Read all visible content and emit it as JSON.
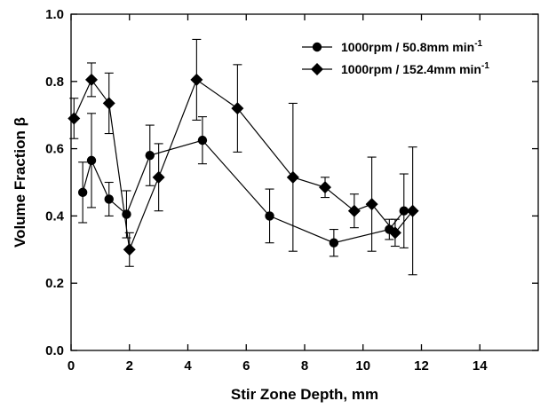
{
  "chart_data": {
    "type": "scatter",
    "xlabel": "Stir Zone Depth, mm",
    "ylabel": "Volume Fraction β",
    "xlim": [
      0,
      16
    ],
    "ylim": [
      0.0,
      1.0
    ],
    "x_ticks": [
      0,
      2,
      4,
      6,
      8,
      10,
      12,
      14
    ],
    "y_ticks": [
      0.0,
      0.2,
      0.4,
      0.6,
      0.8,
      1.0
    ],
    "x_tick_labels": [
      "0",
      "2",
      "4",
      "6",
      "8",
      "10",
      "12",
      "14"
    ],
    "y_tick_labels": [
      "0.0",
      "0.2",
      "0.4",
      "0.6",
      "0.8",
      "1.0"
    ],
    "legend_position": "top-right",
    "series": [
      {
        "name": "1000rpm / 50.8mm min",
        "name_superscript": "-1",
        "marker": "circle",
        "color": "#000000",
        "x": [
          0.4,
          0.7,
          1.3,
          1.9,
          2.7,
          4.5,
          6.8,
          9.0,
          10.9,
          11.4
        ],
        "y": [
          0.47,
          0.565,
          0.45,
          0.405,
          0.58,
          0.625,
          0.4,
          0.32,
          0.36,
          0.415
        ],
        "err": [
          0.09,
          0.14,
          0.05,
          0.07,
          0.09,
          0.07,
          0.08,
          0.04,
          0.03,
          0.11
        ]
      },
      {
        "name": "1000rpm / 152.4mm min",
        "name_superscript": "-1",
        "marker": "diamond",
        "color": "#000000",
        "x": [
          0.1,
          0.7,
          1.3,
          2.0,
          3.0,
          4.3,
          5.7,
          7.6,
          8.7,
          9.7,
          10.3,
          11.1,
          11.7
        ],
        "y": [
          0.69,
          0.805,
          0.735,
          0.3,
          0.515,
          0.805,
          0.72,
          0.515,
          0.485,
          0.415,
          0.435,
          0.35,
          0.415
        ],
        "err": [
          0.06,
          0.05,
          0.09,
          0.05,
          0.1,
          0.12,
          0.13,
          0.22,
          0.03,
          0.05,
          0.14,
          0.04,
          0.19
        ]
      }
    ]
  }
}
